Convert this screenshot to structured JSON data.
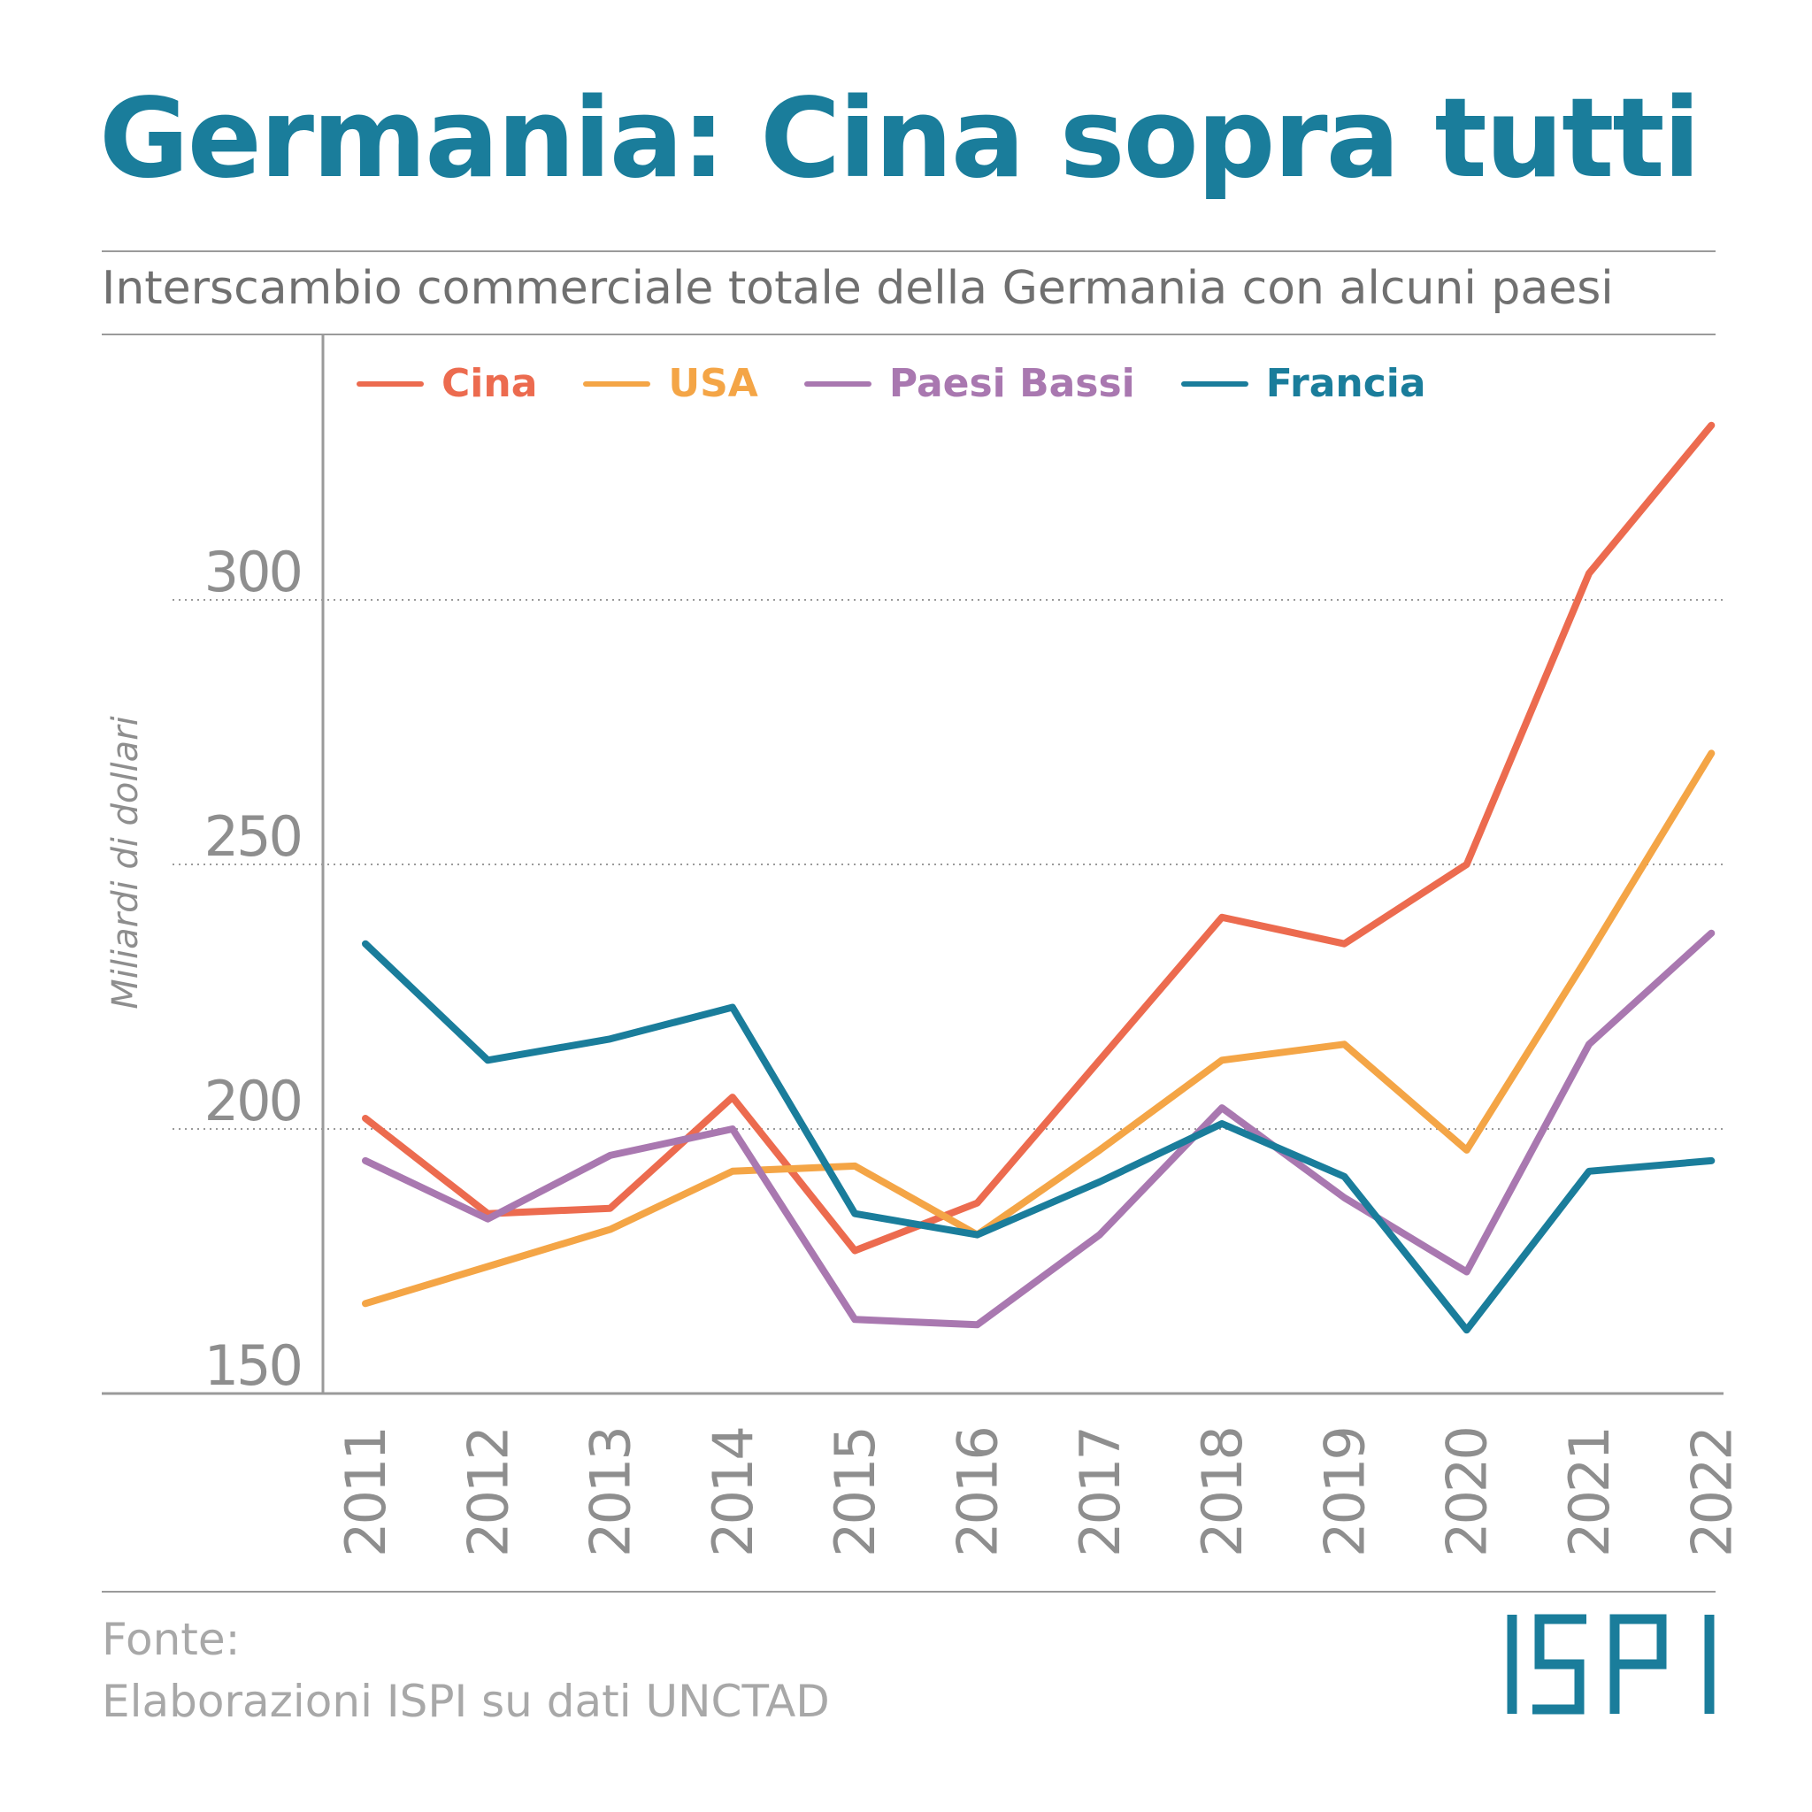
{
  "title": "Germania: Cina sopra tutti",
  "subtitle": "Interscambio commerciale totale della Germania con alcuni paesi",
  "source": {
    "label": "Fonte:",
    "text": "Elaborazioni ISPI su dati UNCTAD"
  },
  "logo": {
    "text": "ISPI",
    "color": "#1a7d9b"
  },
  "chart_data": {
    "type": "line",
    "ylabel": "Miliardi di dollari",
    "xlabel": "",
    "ylim": [
      150,
      340
    ],
    "yticks": [
      150,
      200,
      250,
      300
    ],
    "grid": "horizontal dotted",
    "legend_position": "top",
    "x": [
      "2011",
      "2012",
      "2013",
      "2014",
      "2015",
      "2016",
      "2017",
      "2018",
      "2019",
      "2020",
      "2021",
      "2022"
    ],
    "series": [
      {
        "name": "Cina",
        "color": "#ec6b4f",
        "values": [
          202,
          184,
          185,
          206,
          177,
          186,
          213,
          240,
          235,
          250,
          305,
          333
        ]
      },
      {
        "name": "USA",
        "color": "#f4a546",
        "values": [
          167,
          174,
          181,
          192,
          193,
          180,
          196,
          213,
          216,
          196,
          233,
          271
        ]
      },
      {
        "name": "Paesi Bassi",
        "color": "#a978b0",
        "values": [
          194,
          183,
          195,
          200,
          164,
          163,
          180,
          204,
          187,
          173,
          216,
          237
        ]
      },
      {
        "name": "Francia",
        "color": "#1a7d9b",
        "values": [
          235,
          213,
          217,
          223,
          184,
          180,
          190,
          201,
          191,
          162,
          192,
          194
        ]
      }
    ]
  }
}
